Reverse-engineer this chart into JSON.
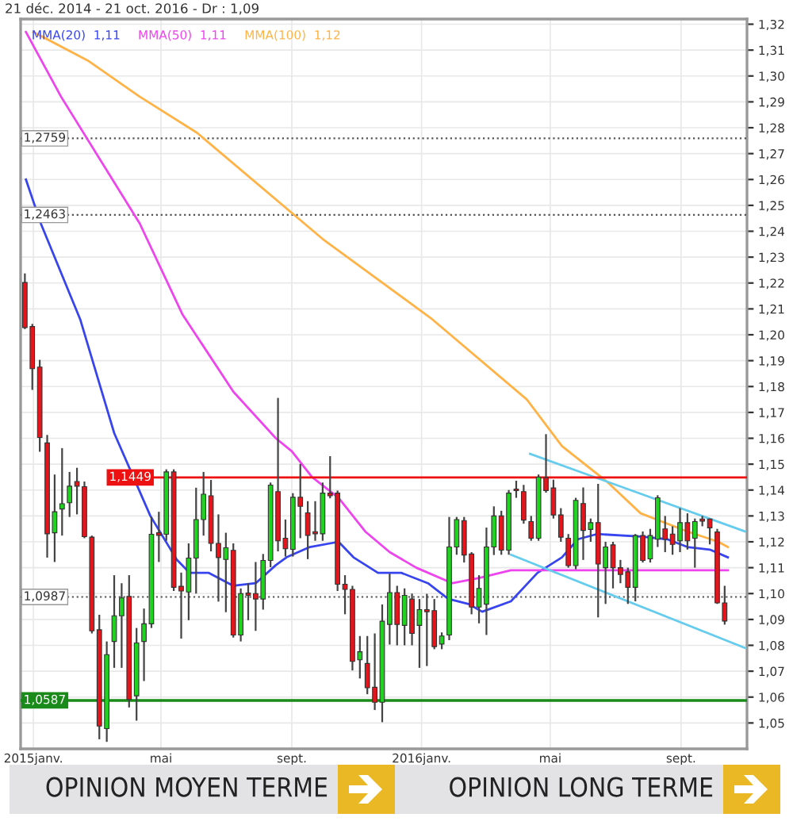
{
  "chart_data": {
    "type": "candlestick",
    "title": "21 déc. 2014 - 21 oct. 2016 - Dr : 1,09",
    "x": [
      "2014-12-24",
      "2014-12-31",
      "2015-01-07",
      "2015-01-14",
      "2015-01-21",
      "2015-01-28",
      "2015-02-04",
      "2015-02-11",
      "2015-02-18",
      "2015-02-25",
      "2015-03-04",
      "2015-03-11",
      "2015-03-18",
      "2015-03-25",
      "2015-04-01",
      "2015-04-08",
      "2015-04-15",
      "2015-04-22",
      "2015-04-29",
      "2015-05-06",
      "2015-05-13",
      "2015-05-20",
      "2015-05-27",
      "2015-06-03",
      "2015-06-10",
      "2015-06-17",
      "2015-06-24",
      "2015-07-01",
      "2015-07-08",
      "2015-07-15",
      "2015-07-22",
      "2015-07-29",
      "2015-08-05",
      "2015-08-12",
      "2015-08-19",
      "2015-08-26",
      "2015-09-02",
      "2015-09-09",
      "2015-09-16",
      "2015-09-23",
      "2015-09-30",
      "2015-10-07",
      "2015-10-14",
      "2015-10-21",
      "2015-10-28",
      "2015-11-04",
      "2015-11-11",
      "2015-11-18",
      "2015-11-25",
      "2015-12-02",
      "2015-12-09",
      "2015-12-16",
      "2015-12-23",
      "2015-12-30",
      "2016-01-06",
      "2016-01-13",
      "2016-01-20",
      "2016-01-27",
      "2016-02-03",
      "2016-02-10",
      "2016-02-17",
      "2016-02-24",
      "2016-03-02",
      "2016-03-09",
      "2016-03-16",
      "2016-03-23",
      "2016-03-30",
      "2016-04-06",
      "2016-04-13",
      "2016-04-20",
      "2016-04-27",
      "2016-05-04",
      "2016-05-11",
      "2016-05-18",
      "2016-05-25",
      "2016-06-01",
      "2016-06-08",
      "2016-06-15",
      "2016-06-22",
      "2016-06-29",
      "2016-07-06",
      "2016-07-13",
      "2016-07-20",
      "2016-07-27",
      "2016-08-03",
      "2016-08-10",
      "2016-08-17",
      "2016-08-24",
      "2016-08-31",
      "2016-09-07",
      "2016-09-14",
      "2016-09-21",
      "2016-09-28",
      "2016-10-05",
      "2016-10-12"
    ],
    "ohlc": [
      [
        1.2202,
        1.2237,
        1.2022,
        1.2028
      ],
      [
        1.2032,
        1.2042,
        1.1787,
        1.1869
      ],
      [
        1.1875,
        1.1903,
        1.1548,
        1.1603
      ],
      [
        1.1582,
        1.1613,
        1.1139,
        1.1231
      ],
      [
        1.1235,
        1.146,
        1.1122,
        1.1316
      ],
      [
        1.1327,
        1.1562,
        1.1224,
        1.1347
      ],
      [
        1.1351,
        1.147,
        1.1296,
        1.1415
      ],
      [
        1.1433,
        1.1486,
        1.1306,
        1.1415
      ],
      [
        1.1413,
        1.1433,
        1.1214,
        1.122
      ],
      [
        1.1218,
        1.1224,
        1.0846,
        1.0856
      ],
      [
        1.086,
        1.0918,
        1.0437,
        1.0488
      ],
      [
        1.0478,
        1.0815,
        1.0427,
        1.0764
      ],
      [
        1.0815,
        1.1071,
        1.0713,
        1.0914
      ],
      [
        1.0914,
        1.104,
        1.0713,
        1.0983
      ],
      [
        1.0989,
        1.1071,
        1.056,
        1.0591
      ],
      [
        1.0605,
        1.0867,
        1.0509,
        1.0809
      ],
      [
        1.0815,
        1.0942,
        1.0662,
        1.0883
      ],
      [
        1.0883,
        1.1296,
        1.0867,
        1.1229
      ],
      [
        1.1235,
        1.1316,
        1.1122,
        1.1225
      ],
      [
        1.1229,
        1.148,
        1.1204,
        1.147
      ],
      [
        1.147,
        1.148,
        1.101,
        1.1024
      ],
      [
        1.1028,
        1.1081,
        1.0826,
        1.101
      ],
      [
        1.1006,
        1.1194,
        1.0897,
        1.1137
      ],
      [
        1.1137,
        1.1409,
        1.1,
        1.1286
      ],
      [
        1.1286,
        1.147,
        1.1224,
        1.1384
      ],
      [
        1.1378,
        1.1439,
        1.1163,
        1.1194
      ],
      [
        1.1194,
        1.1306,
        1.0969,
        1.1139
      ],
      [
        1.1132,
        1.1235,
        1.0928,
        1.1177
      ],
      [
        1.1167,
        1.1194,
        1.083,
        1.084
      ],
      [
        1.084,
        1.102,
        1.0815,
        1.1
      ],
      [
        1.1002,
        1.104,
        1.0897,
        1.0993
      ],
      [
        1.1,
        1.1122,
        1.0856,
        1.0979
      ],
      [
        1.0979,
        1.1153,
        1.0938,
        1.1128
      ],
      [
        1.1128,
        1.1429,
        1.1102,
        1.1419
      ],
      [
        1.1394,
        1.1756,
        1.1163,
        1.1204
      ],
      [
        1.1214,
        1.1286,
        1.1143,
        1.1173
      ],
      [
        1.1171,
        1.1388,
        1.1143,
        1.1372
      ],
      [
        1.1372,
        1.1501,
        1.1214,
        1.1337
      ],
      [
        1.1312,
        1.1357,
        1.1133,
        1.1225
      ],
      [
        1.1239,
        1.1357,
        1.1204,
        1.1231
      ],
      [
        1.1231,
        1.1429,
        1.1204,
        1.1388
      ],
      [
        1.1388,
        1.1531,
        1.1368,
        1.1378
      ],
      [
        1.1388,
        1.1398,
        1.101,
        1.1036
      ],
      [
        1.1036,
        1.1071,
        1.092,
        1.1016
      ],
      [
        1.1016,
        1.103,
        1.0703,
        1.0738
      ],
      [
        1.0744,
        1.0836,
        1.0672,
        1.0775
      ],
      [
        1.073,
        1.0836,
        1.0611,
        1.0636
      ],
      [
        1.0638,
        1.0846,
        1.055,
        1.058
      ],
      [
        1.058,
        1.0958,
        1.0503,
        1.0893
      ],
      [
        1.0881,
        1.1077,
        1.0803,
        1.1004
      ],
      [
        1.1004,
        1.103,
        1.08,
        1.0881
      ],
      [
        1.0877,
        1.102,
        1.08,
        1.0993
      ],
      [
        1.0979,
        1.1,
        1.08,
        1.0846
      ],
      [
        1.0877,
        1.0979,
        1.0713,
        1.0938
      ],
      [
        1.0938,
        1.0999,
        1.072,
        1.093
      ],
      [
        1.0934,
        1.0979,
        1.0785,
        1.0795
      ],
      [
        1.0805,
        1.085,
        1.0785,
        1.0836
      ],
      [
        1.084,
        1.1296,
        1.082,
        1.118
      ],
      [
        1.118,
        1.1296,
        1.115,
        1.1286
      ],
      [
        1.1282,
        1.1296,
        1.112,
        1.1149
      ],
      [
        1.1153,
        1.116,
        1.092,
        1.0948
      ],
      [
        1.0948,
        1.1071,
        1.0885,
        1.102
      ],
      [
        1.0959,
        1.1255,
        1.084,
        1.118
      ],
      [
        1.118,
        1.1337,
        1.1149,
        1.13
      ],
      [
        1.13,
        1.132,
        1.115,
        1.1168
      ],
      [
        1.1168,
        1.14,
        1.115,
        1.1388
      ],
      [
        1.1404,
        1.1436,
        1.137,
        1.1398
      ],
      [
        1.1394,
        1.142,
        1.127,
        1.1284
      ],
      [
        1.1278,
        1.13,
        1.1204,
        1.1214
      ],
      [
        1.1214,
        1.146,
        1.1204,
        1.145
      ],
      [
        1.1448,
        1.1616,
        1.139,
        1.1398
      ],
      [
        1.1408,
        1.144,
        1.129,
        1.1304
      ],
      [
        1.1304,
        1.133,
        1.12,
        1.1218
      ],
      [
        1.1214,
        1.123,
        1.11,
        1.1108
      ],
      [
        1.1108,
        1.137,
        1.1094,
        1.136
      ],
      [
        1.1348,
        1.141,
        1.113,
        1.1244
      ],
      [
        1.1248,
        1.129,
        1.12,
        1.1274
      ],
      [
        1.1274,
        1.1424,
        1.0908,
        1.1114
      ],
      [
        1.11,
        1.12,
        1.096,
        1.118
      ],
      [
        1.1188,
        1.12,
        1.102,
        1.11
      ],
      [
        1.11,
        1.113,
        1.104,
        1.1074
      ],
      [
        1.1084,
        1.11,
        1.096,
        1.1024
      ],
      [
        1.1024,
        1.123,
        1.097,
        1.1224
      ],
      [
        1.1224,
        1.124,
        1.112,
        1.1128
      ],
      [
        1.1134,
        1.125,
        1.112,
        1.1224
      ],
      [
        1.121,
        1.138,
        1.118,
        1.137
      ],
      [
        1.125,
        1.13,
        1.116,
        1.121
      ],
      [
        1.123,
        1.126,
        1.115,
        1.119
      ],
      [
        1.1204,
        1.133,
        1.116,
        1.1274
      ],
      [
        1.1274,
        1.131,
        1.117,
        1.1204
      ],
      [
        1.1214,
        1.129,
        1.11,
        1.1278
      ],
      [
        1.1288,
        1.13,
        1.126,
        1.128
      ],
      [
        1.1288,
        1.129,
        1.119,
        1.1254
      ],
      [
        1.1238,
        1.125,
        1.096,
        1.0964
      ],
      [
        1.0964,
        1.103,
        1.088,
        1.0894
      ]
    ],
    "colors": [
      "#e8141b",
      "#e8141b",
      "#e8141b",
      "#e8141b",
      "#1ed41e",
      "#1ed41e",
      "#1ed41e",
      "#e8141b",
      "#e8141b",
      "#e8141b",
      "#e8141b",
      "#1ed41e",
      "#1ed41e",
      "#1ed41e",
      "#e8141b",
      "#1ed41e",
      "#1ed41e",
      "#1ed41e",
      "#e8141b",
      "#1ed41e",
      "#e8141b",
      "#e8141b",
      "#1ed41e",
      "#1ed41e",
      "#1ed41e",
      "#e8141b",
      "#e8141b",
      "#1ed41e",
      "#e8141b",
      "#1ed41e",
      "#e8141b",
      "#e8141b",
      "#1ed41e",
      "#1ed41e",
      "#e8141b",
      "#e8141b",
      "#1ed41e",
      "#e8141b",
      "#e8141b",
      "#e8141b",
      "#1ed41e",
      "#e8141b",
      "#e8141b",
      "#e8141b",
      "#e8141b",
      "#1ed41e",
      "#e8141b",
      "#e8141b",
      "#1ed41e",
      "#1ed41e",
      "#e8141b",
      "#1ed41e",
      "#e8141b",
      "#1ed41e",
      "#e8141b",
      "#e8141b",
      "#1ed41e",
      "#1ed41e",
      "#1ed41e",
      "#e8141b",
      "#e8141b",
      "#1ed41e",
      "#1ed41e",
      "#1ed41e",
      "#e8141b",
      "#1ed41e",
      "#e8141b",
      "#e8141b",
      "#e8141b",
      "#1ed41e",
      "#e8141b",
      "#e8141b",
      "#e8141b",
      "#e8141b",
      "#1ed41e",
      "#e8141b",
      "#1ed41e",
      "#e8141b",
      "#1ed41e",
      "#e8141b",
      "#e8141b",
      "#e8141b",
      "#1ed41e",
      "#e8141b",
      "#1ed41e",
      "#1ed41e",
      "#e8141b",
      "#e8141b",
      "#1ed41e",
      "#e8141b",
      "#1ed41e",
      "#e8141b",
      "#e8141b",
      "#e8141b",
      "#e8141b"
    ],
    "series": [
      {
        "type": "line",
        "name": "MMA(20)  1,11",
        "color": "#3845ee",
        "x": [
          "2014-12-25",
          "2015-01-08",
          "2015-02-14",
          "2015-03-18",
          "2015-04-21",
          "2015-05-16",
          "2015-05-28",
          "2015-06-15",
          "2015-07-08",
          "2015-07-29",
          "2015-08-17",
          "2015-08-27",
          "2015-09-18",
          "2015-10-15",
          "2015-10-29",
          "2015-11-21",
          "2015-12-13",
          "2016-01-07",
          "2016-01-26",
          "2016-02-14",
          "2016-02-27",
          "2016-03-25",
          "2016-04-19",
          "2016-05-12",
          "2016-05-27",
          "2016-06-14",
          "2016-07-25",
          "2016-08-19",
          "2016-09-07",
          "2016-09-28",
          "2016-10-15"
        ],
        "values": [
          1.26,
          1.243,
          1.206,
          1.162,
          1.13,
          1.113,
          1.108,
          1.108,
          1.103,
          1.104,
          1.111,
          1.114,
          1.118,
          1.12,
          1.114,
          1.108,
          1.108,
          1.104,
          1.098,
          1.096,
          1.093,
          1.097,
          1.108,
          1.114,
          1.121,
          1.123,
          1.122,
          1.121,
          1.118,
          1.117,
          1.114
        ]
      },
      {
        "type": "line",
        "name": "MMA(50)  1,11",
        "color": "#ee44ee",
        "x": [
          "2014-12-25",
          "2015-01-27",
          "2015-04-11",
          "2015-05-21",
          "2015-07-08",
          "2015-08-17",
          "2015-09-01",
          "2015-09-20",
          "2015-10-15",
          "2015-11-09",
          "2015-12-02",
          "2015-12-27",
          "2016-01-30",
          "2016-02-24",
          "2016-03-25",
          "2016-04-19",
          "2016-05-12",
          "2016-06-06",
          "2016-08-19",
          "2016-10-15"
        ],
        "values": [
          1.317,
          1.292,
          1.243,
          1.208,
          1.178,
          1.16,
          1.155,
          1.145,
          1.137,
          1.124,
          1.116,
          1.11,
          1.104,
          1.106,
          1.109,
          1.109,
          1.109,
          1.109,
          1.109,
          1.109
        ]
      },
      {
        "type": "line",
        "name": "MMA(100)  1,12",
        "color": "#ffb347",
        "x": [
          "2015-01-01",
          "2015-02-21",
          "2015-04-11",
          "2015-06-04",
          "2015-09-30",
          "2016-01-11",
          "2016-04-09",
          "2016-05-12",
          "2016-06-24",
          "2016-07-25",
          "2016-09-07",
          "2016-10-06",
          "2016-10-15"
        ],
        "values": [
          1.317,
          1.306,
          1.292,
          1.278,
          1.237,
          1.206,
          1.175,
          1.157,
          1.143,
          1.131,
          1.124,
          1.12,
          1.118
        ]
      },
      {
        "type": "line",
        "color": "#66ccee",
        "x": [
          "2016-04-12",
          "2016-10-31"
        ],
        "values": [
          1.154,
          1.124
        ]
      },
      {
        "type": "line",
        "color": "#66ccee",
        "x": [
          "2016-03-25",
          "2016-10-31"
        ],
        "values": [
          1.115,
          1.079
        ]
      },
      {
        "type": "line",
        "color": "#ee1111",
        "x": [
          "2015-04-22",
          "2016-11-02"
        ],
        "values": [
          1.1449,
          1.1449
        ]
      }
    ],
    "xlim": [
      "2014-12-20",
      "2016-11-02"
    ],
    "ylim": [
      1.04,
      1.322
    ],
    "xticks": [
      {
        "value": "2015-01-01",
        "label": "2015janv."
      },
      {
        "value": "2015-05-01",
        "label": "mai"
      },
      {
        "value": "2015-09-01",
        "label": "sept."
      },
      {
        "value": "2016-01-01",
        "label": "2016janv."
      },
      {
        "value": "2016-05-01",
        "label": "mai"
      },
      {
        "value": "2016-09-01",
        "label": "sept."
      }
    ],
    "yticks": [
      {
        "value": 1.05,
        "label": "1,05"
      },
      {
        "value": 1.06,
        "label": "1,06"
      },
      {
        "value": 1.07,
        "label": "1,07"
      },
      {
        "value": 1.08,
        "label": "1,08"
      },
      {
        "value": 1.09,
        "label": "1,09"
      },
      {
        "value": 1.1,
        "label": "1,10"
      },
      {
        "value": 1.11,
        "label": "1,11"
      },
      {
        "value": 1.12,
        "label": "1,12"
      },
      {
        "value": 1.13,
        "label": "1,13"
      },
      {
        "value": 1.14,
        "label": "1,14"
      },
      {
        "value": 1.15,
        "label": "1,15"
      },
      {
        "value": 1.16,
        "label": "1,16"
      },
      {
        "value": 1.17,
        "label": "1,17"
      },
      {
        "value": 1.18,
        "label": "1,18"
      },
      {
        "value": 1.19,
        "label": "1,19"
      },
      {
        "value": 1.2,
        "label": "1,20"
      },
      {
        "value": 1.21,
        "label": "1,21"
      },
      {
        "value": 1.22,
        "label": "1,22"
      },
      {
        "value": 1.23,
        "label": "1,23"
      },
      {
        "value": 1.24,
        "label": "1,24"
      },
      {
        "value": 1.25,
        "label": "1,25"
      },
      {
        "value": 1.26,
        "label": "1,26"
      },
      {
        "value": 1.27,
        "label": "1,27"
      },
      {
        "value": 1.28,
        "label": "1,28"
      },
      {
        "value": 1.29,
        "label": "1,29"
      },
      {
        "value": 1.3,
        "label": "1,30"
      },
      {
        "value": 1.31,
        "label": "1,31"
      },
      {
        "value": 1.32,
        "label": "1,32"
      }
    ],
    "grid": true,
    "legend": "top left",
    "ref_lines": [
      {
        "axis": "y",
        "value": 1.2759,
        "label": "1,2759",
        "color": "#555555",
        "line_style": "dotted"
      },
      {
        "axis": "y",
        "value": 1.2463,
        "label": "1,2463",
        "color": "#555555",
        "line_style": "dotted"
      },
      {
        "axis": "y",
        "value": 1.0987,
        "label": "1,0987",
        "color": "#555555",
        "line_style": "dotted"
      },
      {
        "axis": "y",
        "value": 1.0587,
        "label": "1,0587",
        "color": "#1a8a1a",
        "line_style": "solid"
      }
    ],
    "annotations": [
      {
        "text": "1,1449",
        "x": "2015-04-22",
        "y": 1.1449
      },
      "OPINION MOYEN TERME",
      "OPINION LONG TERME"
    ]
  }
}
